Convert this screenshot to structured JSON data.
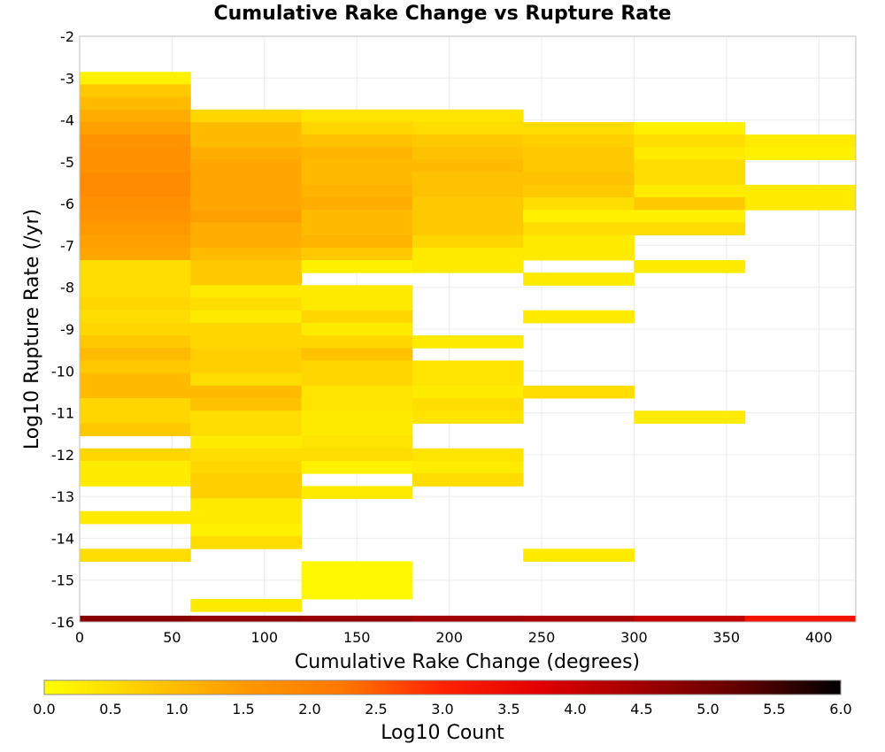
{
  "chart_data": {
    "type": "heatmap",
    "title": "Cumulative Rake Change vs Rupture Rate",
    "xlabel": "Cumulative Rake Change (degrees)",
    "ylabel": "Log10 Rupture Rate (/yr)",
    "colorbar_label": "Log10 Count",
    "xlim": [
      0,
      420
    ],
    "ylim": [
      -16,
      -2
    ],
    "x_ticks": [
      "0",
      "50",
      "100",
      "150",
      "200",
      "250",
      "300",
      "350",
      "400"
    ],
    "y_ticks": [
      "-2",
      "-3",
      "-4",
      "-5",
      "-6",
      "-7",
      "-8",
      "-9",
      "-10",
      "-11",
      "-12",
      "-13",
      "-14",
      "-15",
      "-16"
    ],
    "colorbar_ticks": [
      "0.0",
      "0.5",
      "1.0",
      "1.5",
      "2.0",
      "2.5",
      "3.0",
      "3.5",
      "4.0",
      "4.5",
      "5.0",
      "5.5",
      "6.0"
    ],
    "colorbar_range": [
      0,
      6
    ],
    "colormap": [
      "#ffff00",
      "#ffcc00",
      "#ff9900",
      "#ff7700",
      "#ff2200",
      "#e00000",
      "#a00000",
      "#600000",
      "#000000"
    ],
    "grid": true,
    "cell_height": 0.3,
    "columns": [
      {
        "x0": 0,
        "x1": 60,
        "cells": [
          {
            "y": -3.0,
            "z": 0.2
          },
          {
            "y": -3.3,
            "z": 0.8
          },
          {
            "y": -3.6,
            "z": 1.0
          },
          {
            "y": -3.9,
            "z": 1.2
          },
          {
            "y": -4.2,
            "z": 1.4
          },
          {
            "y": -4.5,
            "z": 1.6
          },
          {
            "y": -4.8,
            "z": 1.7
          },
          {
            "y": -5.1,
            "z": 1.7
          },
          {
            "y": -5.4,
            "z": 1.8
          },
          {
            "y": -5.7,
            "z": 1.8
          },
          {
            "y": -6.0,
            "z": 1.7
          },
          {
            "y": -6.3,
            "z": 1.6
          },
          {
            "y": -6.6,
            "z": 1.5
          },
          {
            "y": -6.9,
            "z": 1.4
          },
          {
            "y": -7.2,
            "z": 1.3
          },
          {
            "y": -7.5,
            "z": 0.5
          },
          {
            "y": -7.8,
            "z": 0.5
          },
          {
            "y": -8.1,
            "z": 0.5
          },
          {
            "y": -8.4,
            "z": 0.6
          },
          {
            "y": -8.7,
            "z": 0.5
          },
          {
            "y": -9.0,
            "z": 0.6
          },
          {
            "y": -9.3,
            "z": 0.8
          },
          {
            "y": -9.6,
            "z": 1.0
          },
          {
            "y": -9.9,
            "z": 0.8
          },
          {
            "y": -10.2,
            "z": 1.0
          },
          {
            "y": -10.5,
            "z": 1.0
          },
          {
            "y": -10.8,
            "z": 0.6
          },
          {
            "y": -11.1,
            "z": 0.6
          },
          {
            "y": -11.4,
            "z": 0.8
          },
          {
            "y": -12.0,
            "z": 0.6
          },
          {
            "y": -12.3,
            "z": 0.3
          },
          {
            "y": -12.6,
            "z": 0.3
          },
          {
            "y": -13.5,
            "z": 0.3
          },
          {
            "y": -14.4,
            "z": 0.5
          }
        ]
      },
      {
        "x0": 60,
        "x1": 120,
        "cells": [
          {
            "y": -3.9,
            "z": 0.6
          },
          {
            "y": -4.2,
            "z": 1.0
          },
          {
            "y": -4.5,
            "z": 1.0
          },
          {
            "y": -4.8,
            "z": 1.2
          },
          {
            "y": -5.1,
            "z": 1.3
          },
          {
            "y": -5.4,
            "z": 1.3
          },
          {
            "y": -5.7,
            "z": 1.3
          },
          {
            "y": -6.0,
            "z": 1.3
          },
          {
            "y": -6.3,
            "z": 1.4
          },
          {
            "y": -6.6,
            "z": 1.2
          },
          {
            "y": -6.9,
            "z": 1.2
          },
          {
            "y": -7.2,
            "z": 1.0
          },
          {
            "y": -7.5,
            "z": 0.8
          },
          {
            "y": -7.8,
            "z": 0.8
          },
          {
            "y": -8.1,
            "z": 0.3
          },
          {
            "y": -8.4,
            "z": 0.5
          },
          {
            "y": -8.7,
            "z": 0.3
          },
          {
            "y": -9.0,
            "z": 0.6
          },
          {
            "y": -9.3,
            "z": 0.6
          },
          {
            "y": -9.6,
            "z": 0.7
          },
          {
            "y": -9.9,
            "z": 0.7
          },
          {
            "y": -10.2,
            "z": 0.5
          },
          {
            "y": -10.5,
            "z": 1.0
          },
          {
            "y": -10.8,
            "z": 0.9
          },
          {
            "y": -11.1,
            "z": 0.5
          },
          {
            "y": -11.4,
            "z": 0.5
          },
          {
            "y": -11.7,
            "z": 0.3
          },
          {
            "y": -12.0,
            "z": 0.5
          },
          {
            "y": -12.3,
            "z": 0.6
          },
          {
            "y": -12.6,
            "z": 0.7
          },
          {
            "y": -12.9,
            "z": 0.7
          },
          {
            "y": -13.2,
            "z": 0.3
          },
          {
            "y": -13.5,
            "z": 0.3
          },
          {
            "y": -13.8,
            "z": 0.2
          },
          {
            "y": -14.1,
            "z": 0.5
          },
          {
            "y": -15.6,
            "z": 0.3
          }
        ]
      },
      {
        "x0": 120,
        "x1": 180,
        "cells": [
          {
            "y": -3.9,
            "z": 0.4
          },
          {
            "y": -4.2,
            "z": 0.6
          },
          {
            "y": -4.5,
            "z": 0.9
          },
          {
            "y": -4.8,
            "z": 1.1
          },
          {
            "y": -5.1,
            "z": 1.0
          },
          {
            "y": -5.4,
            "z": 1.0
          },
          {
            "y": -5.7,
            "z": 1.1
          },
          {
            "y": -6.0,
            "z": 1.2
          },
          {
            "y": -6.3,
            "z": 1.0
          },
          {
            "y": -6.6,
            "z": 1.0
          },
          {
            "y": -6.9,
            "z": 1.1
          },
          {
            "y": -7.2,
            "z": 0.8
          },
          {
            "y": -7.5,
            "z": 0.2
          },
          {
            "y": -8.1,
            "z": 0.3
          },
          {
            "y": -8.4,
            "z": 0.3
          },
          {
            "y": -8.7,
            "z": 0.6
          },
          {
            "y": -9.0,
            "z": 0.3
          },
          {
            "y": -9.3,
            "z": 0.6
          },
          {
            "y": -9.6,
            "z": 0.9
          },
          {
            "y": -9.9,
            "z": 0.6
          },
          {
            "y": -10.2,
            "z": 0.6
          },
          {
            "y": -10.5,
            "z": 0.4
          },
          {
            "y": -10.8,
            "z": 0.4
          },
          {
            "y": -11.1,
            "z": 0.3
          },
          {
            "y": -11.4,
            "z": 0.3
          },
          {
            "y": -11.7,
            "z": 0.4
          },
          {
            "y": -12.0,
            "z": 0.5
          },
          {
            "y": -12.3,
            "z": 0.2
          },
          {
            "y": -12.9,
            "z": 0.3
          },
          {
            "y": -14.7,
            "z": 0.1
          },
          {
            "y": -15.0,
            "z": 0.1
          },
          {
            "y": -15.3,
            "z": 0.1
          }
        ]
      },
      {
        "x0": 180,
        "x1": 240,
        "cells": [
          {
            "y": -3.9,
            "z": 0.4
          },
          {
            "y": -4.2,
            "z": 0.5
          },
          {
            "y": -4.5,
            "z": 0.8
          },
          {
            "y": -4.8,
            "z": 0.9
          },
          {
            "y": -5.1,
            "z": 1.0
          },
          {
            "y": -5.4,
            "z": 0.9
          },
          {
            "y": -5.7,
            "z": 0.9
          },
          {
            "y": -6.0,
            "z": 0.8
          },
          {
            "y": -6.3,
            "z": 0.8
          },
          {
            "y": -6.6,
            "z": 0.8
          },
          {
            "y": -6.9,
            "z": 0.6
          },
          {
            "y": -7.2,
            "z": 0.3
          },
          {
            "y": -7.5,
            "z": 0.3
          },
          {
            "y": -9.3,
            "z": 0.3
          },
          {
            "y": -9.9,
            "z": 0.4
          },
          {
            "y": -10.2,
            "z": 0.4
          },
          {
            "y": -10.5,
            "z": 0.3
          },
          {
            "y": -10.8,
            "z": 0.5
          },
          {
            "y": -11.1,
            "z": 0.4
          },
          {
            "y": -12.0,
            "z": 0.4
          },
          {
            "y": -12.3,
            "z": 0.3
          },
          {
            "y": -12.6,
            "z": 0.5
          }
        ]
      },
      {
        "x0": 240,
        "x1": 300,
        "cells": [
          {
            "y": -4.2,
            "z": 0.5
          },
          {
            "y": -4.5,
            "z": 0.7
          },
          {
            "y": -4.8,
            "z": 0.8
          },
          {
            "y": -5.1,
            "z": 0.8
          },
          {
            "y": -5.4,
            "z": 0.9
          },
          {
            "y": -5.7,
            "z": 0.8
          },
          {
            "y": -6.0,
            "z": 0.5
          },
          {
            "y": -6.3,
            "z": 0.2
          },
          {
            "y": -6.6,
            "z": 0.5
          },
          {
            "y": -6.9,
            "z": 0.3
          },
          {
            "y": -7.2,
            "z": 0.3
          },
          {
            "y": -7.8,
            "z": 0.3
          },
          {
            "y": -8.7,
            "z": 0.3
          },
          {
            "y": -10.5,
            "z": 0.5
          },
          {
            "y": -14.4,
            "z": 0.3
          }
        ]
      },
      {
        "x0": 300,
        "x1": 360,
        "cells": [
          {
            "y": -4.2,
            "z": 0.2
          },
          {
            "y": -4.5,
            "z": 0.5
          },
          {
            "y": -4.8,
            "z": 0.3
          },
          {
            "y": -5.1,
            "z": 0.5
          },
          {
            "y": -5.4,
            "z": 0.5
          },
          {
            "y": -5.7,
            "z": 0.3
          },
          {
            "y": -6.0,
            "z": 0.8
          },
          {
            "y": -6.3,
            "z": 0.2
          },
          {
            "y": -6.6,
            "z": 0.5
          },
          {
            "y": -7.5,
            "z": 0.3
          },
          {
            "y": -11.1,
            "z": 0.3
          }
        ]
      },
      {
        "x0": 360,
        "x1": 420,
        "cells": [
          {
            "y": -4.5,
            "z": 0.3
          },
          {
            "y": -4.8,
            "z": 0.2
          },
          {
            "y": -5.7,
            "z": 0.3
          },
          {
            "y": -6.0,
            "z": 0.3
          }
        ]
      }
    ],
    "bottom_row": {
      "y": -16.0,
      "values": [
        {
          "x0": 0,
          "x1": 60,
          "z": 4.8
        },
        {
          "x0": 60,
          "x1": 120,
          "z": 4.7
        },
        {
          "x0": 120,
          "x1": 180,
          "z": 4.6
        },
        {
          "x0": 180,
          "x1": 240,
          "z": 4.5
        },
        {
          "x0": 240,
          "x1": 300,
          "z": 4.4
        },
        {
          "x0": 300,
          "x1": 360,
          "z": 4.1
        },
        {
          "x0": 360,
          "x1": 420,
          "z": 3.3
        }
      ]
    }
  }
}
